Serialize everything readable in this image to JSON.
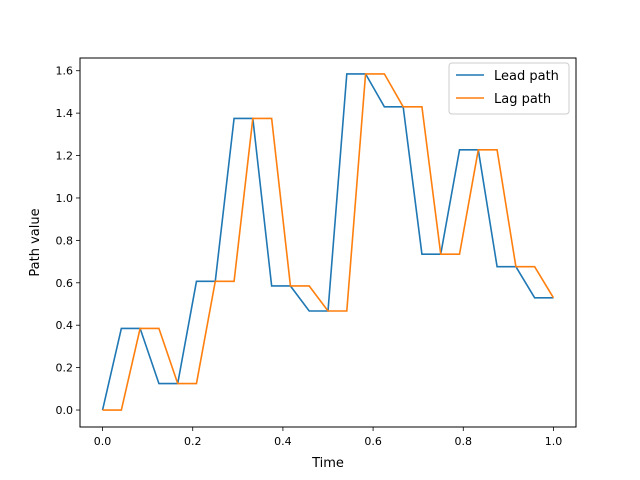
{
  "chart_data": {
    "type": "line",
    "xlabel": "Time",
    "ylabel": "Path value",
    "xlim": [
      -0.05,
      1.05
    ],
    "ylim": [
      -0.08,
      1.66
    ],
    "xticks": [
      0.0,
      0.2,
      0.4,
      0.6,
      0.8,
      1.0
    ],
    "xtick_labels": [
      "0.0",
      "0.2",
      "0.4",
      "0.6",
      "0.8",
      "1.0"
    ],
    "yticks": [
      0.0,
      0.2,
      0.4,
      0.6,
      0.8,
      1.0,
      1.2,
      1.4,
      1.6
    ],
    "ytick_labels": [
      "0.0",
      "0.2",
      "0.4",
      "0.6",
      "0.8",
      "1.0",
      "1.2",
      "1.4",
      "1.6"
    ],
    "grid": false,
    "legend_position": "top-right",
    "series": [
      {
        "name": "Lead path",
        "color": "#1f77b4",
        "x": [
          0.0,
          0.0417,
          0.0833,
          0.125,
          0.1667,
          0.2083,
          0.25,
          0.2917,
          0.3333,
          0.375,
          0.4167,
          0.4583,
          0.5,
          0.5417,
          0.5833,
          0.625,
          0.6667,
          0.7083,
          0.75,
          0.7917,
          0.8333,
          0.875,
          0.9167,
          0.9583,
          1.0
        ],
        "y": [
          0.0,
          0.385,
          0.385,
          0.125,
          0.125,
          0.607,
          0.607,
          1.375,
          1.375,
          0.585,
          0.585,
          0.467,
          0.467,
          1.585,
          1.585,
          1.43,
          1.43,
          0.735,
          0.735,
          1.227,
          1.227,
          0.676,
          0.676,
          0.529,
          0.529
        ]
      },
      {
        "name": "Lag path",
        "color": "#ff7f0e",
        "x": [
          0.0,
          0.0417,
          0.0833,
          0.125,
          0.1667,
          0.2083,
          0.25,
          0.2917,
          0.3333,
          0.375,
          0.4167,
          0.4583,
          0.5,
          0.5417,
          0.5833,
          0.625,
          0.6667,
          0.7083,
          0.75,
          0.7917,
          0.8333,
          0.875,
          0.9167,
          0.9583,
          1.0
        ],
        "y": [
          0.0,
          0.0,
          0.385,
          0.385,
          0.125,
          0.125,
          0.607,
          0.607,
          1.375,
          1.375,
          0.585,
          0.585,
          0.467,
          0.467,
          1.585,
          1.585,
          1.43,
          1.43,
          0.735,
          0.735,
          1.227,
          1.227,
          0.676,
          0.676,
          0.529
        ]
      }
    ]
  }
}
